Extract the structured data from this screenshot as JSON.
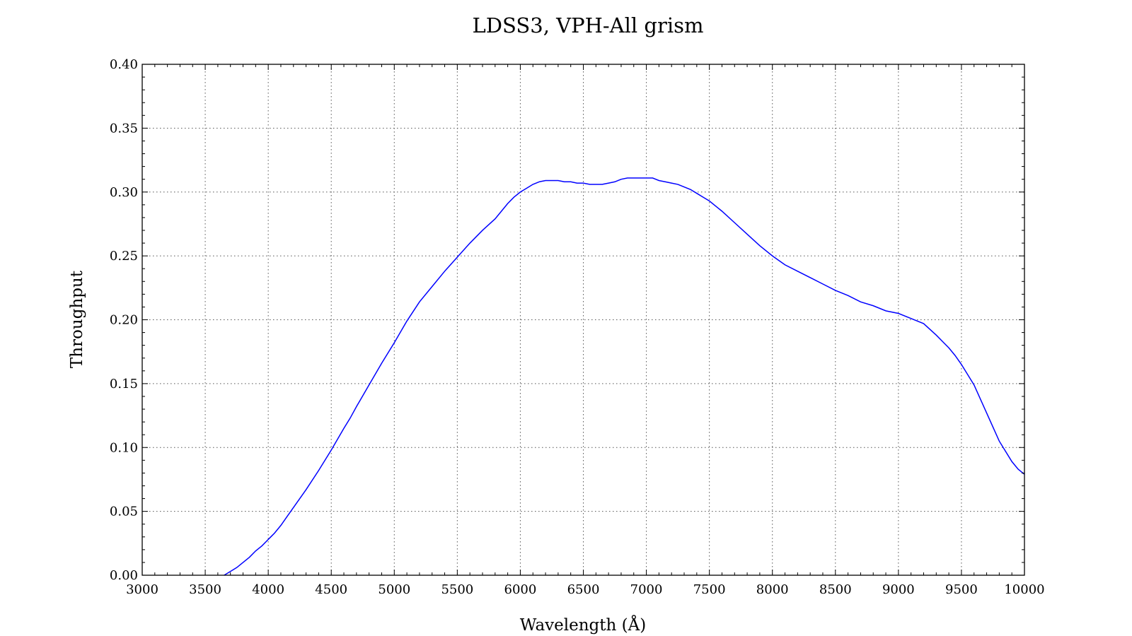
{
  "chart_data": {
    "type": "line",
    "title": "LDSS3, VPH-All grism",
    "xlabel": "Wavelength (Å)",
    "ylabel": "Throughput",
    "xlim": [
      3000,
      10000
    ],
    "ylim": [
      0.0,
      0.4
    ],
    "xticks": [
      "3000",
      "3500",
      "4000",
      "4500",
      "5000",
      "5500",
      "6000",
      "6500",
      "7000",
      "7500",
      "8000",
      "8500",
      "9000",
      "9500",
      "10000"
    ],
    "yticks": [
      "0.00",
      "0.05",
      "0.10",
      "0.15",
      "0.20",
      "0.25",
      "0.30",
      "0.35",
      "0.40"
    ],
    "grid": true,
    "colors": {
      "series": "#0000ff"
    },
    "series": [
      {
        "x": [
          3650,
          3700,
          3750,
          3800,
          3850,
          3900,
          3950,
          4000,
          4050,
          4100,
          4150,
          4200,
          4300,
          4400,
          4500,
          4600,
          4650,
          4700,
          4800,
          4900,
          5000,
          5100,
          5200,
          5300,
          5400,
          5500,
          5600,
          5700,
          5800,
          5850,
          5900,
          5950,
          6000,
          6050,
          6100,
          6150,
          6200,
          6300,
          6350,
          6400,
          6450,
          6500,
          6550,
          6600,
          6650,
          6700,
          6750,
          6800,
          6850,
          6900,
          6950,
          7000,
          7050,
          7100,
          7150,
          7200,
          7250,
          7300,
          7350,
          7400,
          7450,
          7500,
          7600,
          7700,
          7800,
          7900,
          8000,
          8100,
          8200,
          8300,
          8400,
          8500,
          8600,
          8700,
          8800,
          8900,
          9000,
          9100,
          9200,
          9300,
          9350,
          9400,
          9450,
          9500,
          9550,
          9600,
          9700,
          9800,
          9900,
          9950,
          10000
        ],
        "values": [
          0.0,
          0.003,
          0.006,
          0.01,
          0.014,
          0.019,
          0.023,
          0.028,
          0.033,
          0.039,
          0.046,
          0.053,
          0.067,
          0.082,
          0.098,
          0.115,
          0.123,
          0.132,
          0.149,
          0.166,
          0.182,
          0.199,
          0.214,
          0.226,
          0.238,
          0.249,
          0.26,
          0.27,
          0.279,
          0.285,
          0.291,
          0.296,
          0.3,
          0.303,
          0.306,
          0.308,
          0.309,
          0.309,
          0.308,
          0.308,
          0.307,
          0.307,
          0.306,
          0.306,
          0.306,
          0.307,
          0.308,
          0.31,
          0.311,
          0.311,
          0.311,
          0.311,
          0.311,
          0.309,
          0.308,
          0.307,
          0.306,
          0.304,
          0.302,
          0.299,
          0.296,
          0.293,
          0.285,
          0.276,
          0.267,
          0.258,
          0.25,
          0.243,
          0.238,
          0.233,
          0.228,
          0.223,
          0.219,
          0.214,
          0.211,
          0.207,
          0.205,
          0.201,
          0.197,
          0.188,
          0.183,
          0.178,
          0.172,
          0.165,
          0.157,
          0.149,
          0.127,
          0.105,
          0.089,
          0.083,
          0.079
        ]
      }
    ]
  }
}
